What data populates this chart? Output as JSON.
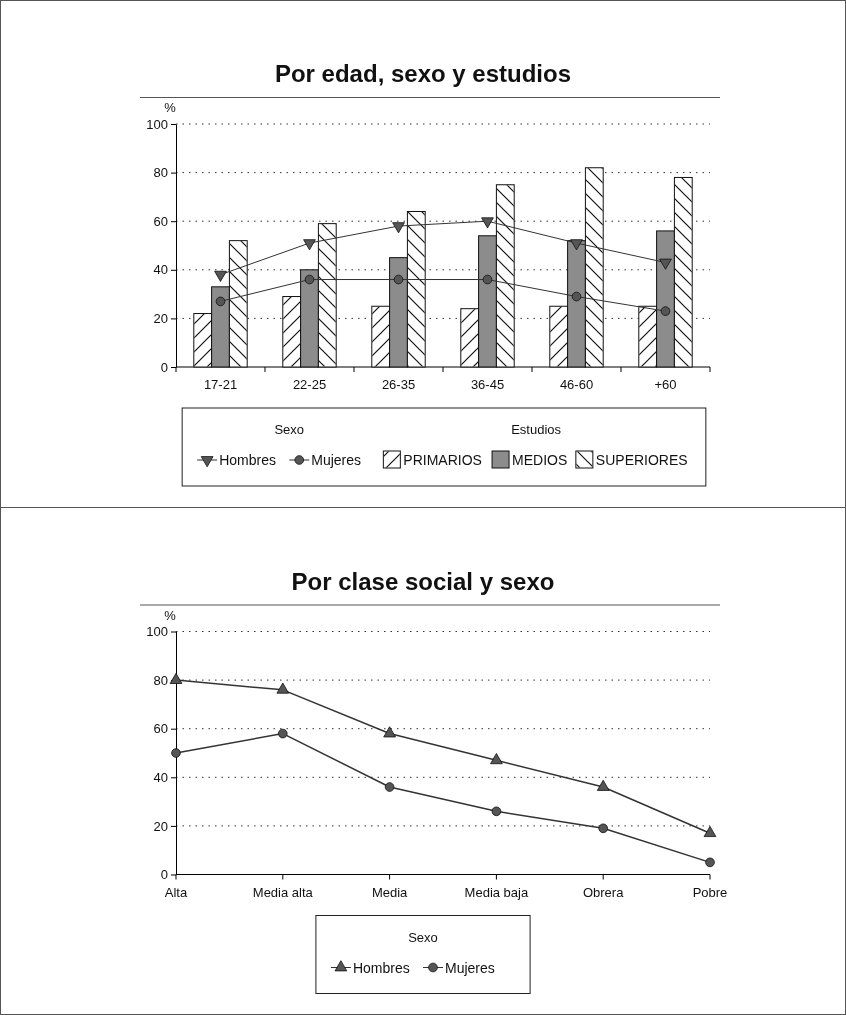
{
  "chart_data": [
    {
      "type": "bar",
      "title": "Por edad, sexo y estudios",
      "ylabel": "%",
      "categories": [
        "17-21",
        "22-25",
        "26-35",
        "36-45",
        "46-60",
        "+60"
      ],
      "ylim": [
        0,
        100
      ],
      "yticks": [
        0,
        20,
        40,
        60,
        80,
        100
      ],
      "grid": "y",
      "legend": "bottom",
      "legend_title": "Sexo",
      "annotations": [
        "Estudios"
      ],
      "series": [
        {
          "name": "Hombres",
          "type": "line",
          "color": "#333333",
          "marker": "triangle-down",
          "values": [
            38,
            51,
            58,
            60,
            51,
            43
          ]
        },
        {
          "name": "Mujeres",
          "type": "line",
          "color": "#333333",
          "marker": "circle",
          "values": [
            27,
            36,
            36,
            36,
            29,
            23
          ]
        },
        {
          "name": "PRIMARIOS",
          "color": "#ffffff",
          "values": [
            22,
            29,
            25,
            24,
            25,
            25
          ]
        },
        {
          "name": "MEDIOS",
          "color": "#8c8c8c",
          "values": [
            33,
            40,
            45,
            54,
            52,
            56
          ]
        },
        {
          "name": "SUPERIORES",
          "color": "#ffffff",
          "values": [
            52,
            59,
            64,
            75,
            82,
            78
          ]
        }
      ]
    },
    {
      "type": "line",
      "title": "Por clase social y sexo",
      "ylabel": "%",
      "categories": [
        "Alta",
        "Media alta",
        "Media",
        "Media baja",
        "Obrera",
        "Pobre"
      ],
      "ylim": [
        0,
        100
      ],
      "yticks": [
        0,
        20,
        40,
        60,
        80,
        100
      ],
      "grid": "y",
      "legend": "bottom",
      "legend_title": "Sexo",
      "series": [
        {
          "name": "Hombres",
          "color": "#333333",
          "marker": "triangle",
          "values": [
            80,
            76,
            58,
            47,
            36,
            17
          ]
        },
        {
          "name": "Mujeres",
          "color": "#333333",
          "marker": "circle",
          "values": [
            50,
            58,
            36,
            26,
            19,
            5
          ]
        }
      ]
    }
  ]
}
